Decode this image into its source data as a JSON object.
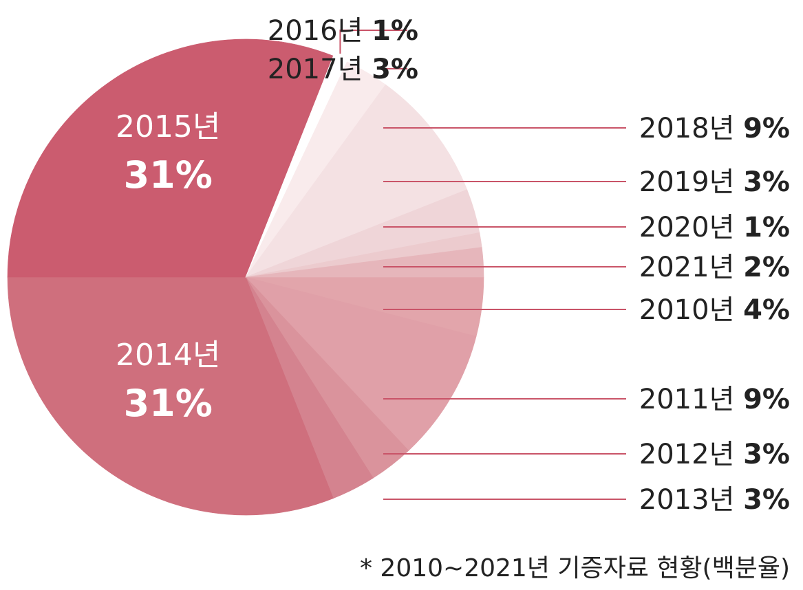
{
  "chart_data": {
    "type": "pie",
    "title": "",
    "footnote": "* 2010~2021년 기증자료 현황(백분율)",
    "slices": [
      {
        "label": "2010년",
        "value": 4,
        "display": "4%",
        "color": "#e2a5ab"
      },
      {
        "label": "2011년",
        "value": 9,
        "display": "9%",
        "color": "#e0a0a8"
      },
      {
        "label": "2012년",
        "value": 3,
        "display": "3%",
        "color": "#da939c"
      },
      {
        "label": "2013년",
        "value": 3,
        "display": "3%",
        "color": "#d4838f"
      },
      {
        "label": "2014년",
        "value": 31,
        "display": "31%",
        "color": "#cf6f7d"
      },
      {
        "label": "2015년",
        "value": 31,
        "display": "31%",
        "color": "#cb5c6f"
      },
      {
        "label": "2016년",
        "value": 1,
        "display": "1%",
        "color": "#ffffff"
      },
      {
        "label": "2017년",
        "value": 3,
        "display": "3%",
        "color": "#f9ebec"
      },
      {
        "label": "2018년",
        "value": 9,
        "display": "9%",
        "color": "#f4e1e3"
      },
      {
        "label": "2019년",
        "value": 3,
        "display": "3%",
        "color": "#efd5d8"
      },
      {
        "label": "2020년",
        "value": 1,
        "display": "1%",
        "color": "#eccbce"
      },
      {
        "label": "2021년",
        "value": 2,
        "display": "2%",
        "color": "#e6b6bb"
      }
    ]
  }
}
